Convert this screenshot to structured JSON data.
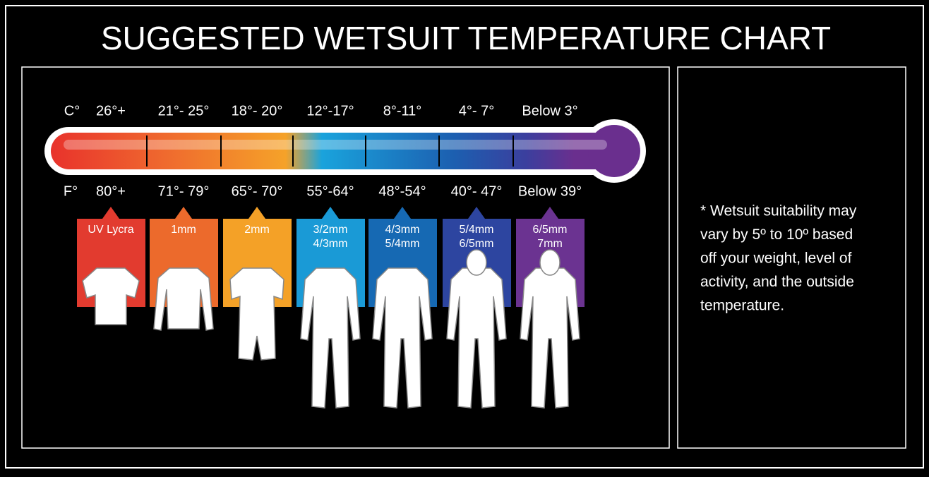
{
  "title": "SUGGESTED WETSUIT TEMPERATURE CHART",
  "celsius": {
    "unit": "C°",
    "ranges": [
      "26°+",
      "21°- 25°",
      "18°- 20°",
      "12°-17°",
      "8°-11°",
      "4°- 7°",
      "Below 3°"
    ]
  },
  "fahrenheit": {
    "unit": "F°",
    "ranges": [
      "80°+",
      "71°- 79°",
      "65°- 70°",
      "55°-64°",
      "48°-54°",
      "40°- 47°",
      "Below 39°"
    ]
  },
  "suits": [
    {
      "lines": [
        "UV Lycra"
      ],
      "color": "#e23b2f"
    },
    {
      "lines": [
        "1mm"
      ],
      "color": "#ec6a2c"
    },
    {
      "lines": [
        "2mm"
      ],
      "color": "#f4a127"
    },
    {
      "lines": [
        "3/2mm",
        "4/3mm"
      ],
      "color": "#1a9ad6"
    },
    {
      "lines": [
        "4/3mm",
        "5/4mm"
      ],
      "color": "#1669b3"
    },
    {
      "lines": [
        "5/4mm",
        "6/5mm"
      ],
      "color": "#2d45a0"
    },
    {
      "lines": [
        "6/5mm",
        "7mm"
      ],
      "color": "#6b3391"
    }
  ],
  "note": [
    "* Wetsuit suitability may",
    "vary by 5º to 10º based",
    "off your weight, level of",
    "activity, and the outside",
    "temperature."
  ]
}
